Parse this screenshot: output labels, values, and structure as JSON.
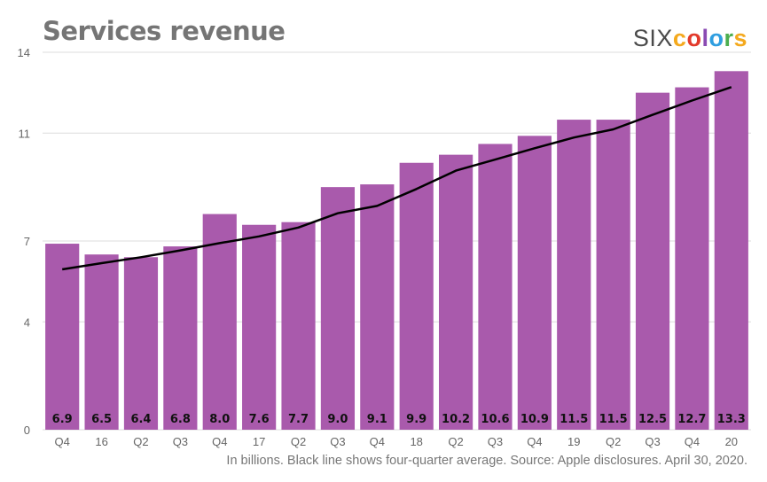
{
  "title": "Services revenue",
  "brand": {
    "prefix": "SIX",
    "letters": [
      {
        "ch": "c",
        "color": "#f4a91d"
      },
      {
        "ch": "o",
        "color": "#e23a2b"
      },
      {
        "ch": "l",
        "color": "#8a4bb3"
      },
      {
        "ch": "o",
        "color": "#2f9ee0"
      },
      {
        "ch": "r",
        "color": "#4cae4f"
      },
      {
        "ch": "s",
        "color": "#f4a91d"
      }
    ]
  },
  "caption": "In billions. Black line shows four-quarter average. Source: Apple disclosures. April 30, 2020.",
  "colors": {
    "bar": "#a95aac",
    "line": "#000000",
    "grid": "#dddddd",
    "axis_text": "#666666",
    "label": "#111111"
  },
  "chart_data": {
    "type": "bar",
    "title": "Services revenue",
    "xlabel": "",
    "ylabel": "",
    "ylim": [
      0,
      14
    ],
    "yticks": [
      0,
      4,
      7,
      11,
      14
    ],
    "grid": true,
    "categories": [
      "Q4",
      "16",
      "Q2",
      "Q3",
      "Q4",
      "17",
      "Q2",
      "Q3",
      "Q4",
      "18",
      "Q2",
      "Q3",
      "Q4",
      "19",
      "Q2",
      "Q3",
      "Q4",
      "20"
    ],
    "series": [
      {
        "values": [
          6.9,
          6.5,
          6.4,
          6.8,
          8.0,
          7.6,
          7.7,
          9.0,
          9.1,
          9.9,
          10.2,
          10.6,
          10.9,
          11.5,
          11.5,
          12.5,
          12.7,
          13.3
        ]
      }
    ],
    "data_labels": [
      "6.9",
      "6.5",
      "6.4",
      "6.8",
      "8.0",
      "7.6",
      "7.7",
      "9.0",
      "9.1",
      "9.9",
      "10.2",
      "10.6",
      "10.9",
      "11.5",
      "11.5",
      "12.5",
      "12.7",
      "13.3"
    ],
    "average_line": [
      5.95,
      6.18,
      6.4,
      6.65,
      6.92,
      7.17,
      7.5,
      8.03,
      8.3,
      8.93,
      9.61,
      10.02,
      10.44,
      10.84,
      11.14,
      11.68,
      12.21,
      12.71
    ]
  }
}
